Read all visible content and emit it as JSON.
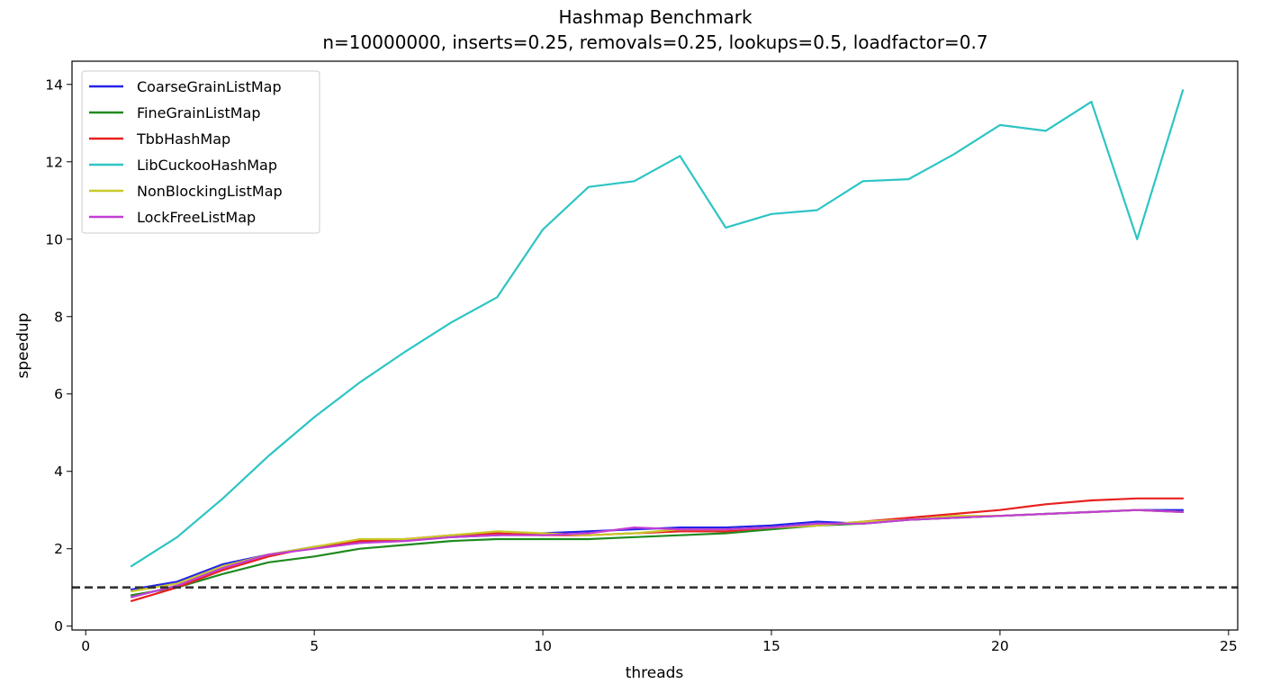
{
  "chart_data": {
    "type": "line",
    "title": "Hashmap Benchmark",
    "subtitle": "n=10000000, inserts=0.25, removals=0.25, lookups=0.5, loadfactor=0.7",
    "xlabel": "threads",
    "ylabel": "speedup",
    "xlim": [
      -0.3,
      25.2
    ],
    "ylim": [
      -0.1,
      14.6
    ],
    "xticks": [
      0,
      5,
      10,
      15,
      20,
      25
    ],
    "yticks": [
      0,
      2,
      4,
      6,
      8,
      10,
      12,
      14
    ],
    "grid": false,
    "legend_position": "top-left",
    "baseline": {
      "y": 1.0,
      "style": "dashed",
      "color": "#333333"
    },
    "x": [
      1,
      2,
      3,
      4,
      5,
      6,
      7,
      8,
      9,
      10,
      11,
      12,
      13,
      14,
      15,
      16,
      17,
      18,
      19,
      20,
      21,
      22,
      23,
      24
    ],
    "series": [
      {
        "name": "CoarseGrainListMap",
        "color": "#2424e8",
        "values": [
          0.95,
          1.15,
          1.6,
          1.85,
          2.05,
          2.15,
          2.25,
          2.3,
          2.35,
          2.4,
          2.45,
          2.5,
          2.55,
          2.55,
          2.6,
          2.7,
          2.65,
          2.75,
          2.8,
          2.85,
          2.9,
          2.95,
          3.0,
          3.0
        ]
      },
      {
        "name": "FineGrainListMap",
        "color": "#1f8a1f",
        "values": [
          0.8,
          1.0,
          1.35,
          1.65,
          1.8,
          2.0,
          2.1,
          2.2,
          2.25,
          2.25,
          2.25,
          2.3,
          2.35,
          2.4,
          2.5,
          2.6,
          2.65,
          2.75,
          2.8,
          2.85,
          2.9,
          2.95,
          3.0,
          2.95
        ]
      },
      {
        "name": "TbbHashMap",
        "color": "#e82020",
        "values": [
          0.65,
          1.0,
          1.45,
          1.8,
          2.05,
          2.2,
          2.25,
          2.35,
          2.4,
          2.35,
          2.35,
          2.4,
          2.45,
          2.45,
          2.55,
          2.6,
          2.7,
          2.8,
          2.9,
          3.0,
          3.15,
          3.25,
          3.3,
          3.3
        ]
      },
      {
        "name": "LibCuckooHashMap",
        "color": "#2ec4c4",
        "values": [
          1.55,
          2.3,
          3.3,
          4.4,
          5.4,
          6.3,
          7.1,
          7.85,
          8.5,
          10.25,
          11.35,
          11.5,
          12.15,
          10.3,
          10.65,
          10.75,
          11.5,
          11.55,
          12.2,
          12.95,
          12.8,
          13.55,
          10.0,
          13.85
        ]
      },
      {
        "name": "NonBlockingListMap",
        "color": "#c9c92a",
        "values": [
          0.9,
          1.1,
          1.55,
          1.85,
          2.05,
          2.25,
          2.25,
          2.35,
          2.45,
          2.4,
          2.35,
          2.4,
          2.5,
          2.5,
          2.55,
          2.6,
          2.7,
          2.75,
          2.85,
          2.85,
          2.9,
          2.95,
          3.0,
          2.95
        ]
      },
      {
        "name": "LockFreeListMap",
        "color": "#c23ed4",
        "values": [
          0.75,
          1.05,
          1.5,
          1.85,
          2.0,
          2.15,
          2.2,
          2.3,
          2.35,
          2.35,
          2.4,
          2.55,
          2.5,
          2.5,
          2.55,
          2.65,
          2.65,
          2.75,
          2.8,
          2.85,
          2.9,
          2.95,
          3.0,
          2.95
        ]
      }
    ]
  }
}
